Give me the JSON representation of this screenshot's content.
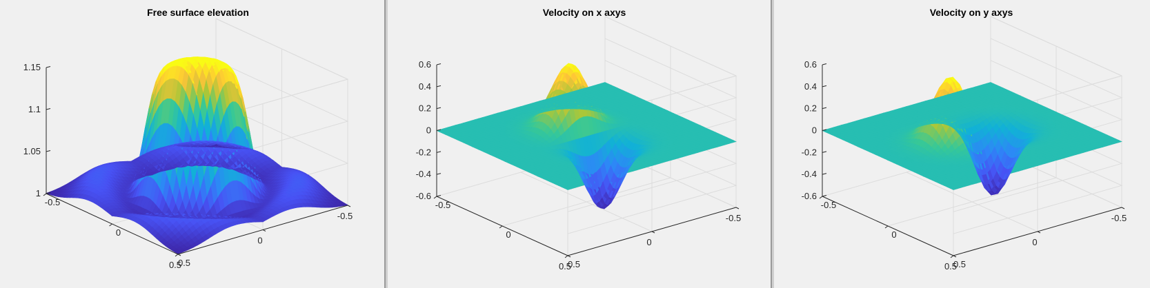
{
  "window": {
    "background": "#f0f0f0"
  },
  "colormap": "parula",
  "chart_data": [
    {
      "type": "surface",
      "title": "Free surface elevation",
      "xlabel": "",
      "ylabel": "",
      "zlabel": "",
      "xlim": [
        -0.5,
        0.5
      ],
      "ylim": [
        -0.5,
        0.5
      ],
      "zlim": [
        1,
        1.15
      ],
      "xticks": [
        "-0.5",
        "0",
        "0.5"
      ],
      "yticks": [
        "-0.5",
        "0",
        "0.5"
      ],
      "zticks": [
        "1",
        "1.05",
        "1.1",
        "1.15"
      ],
      "function": "ring",
      "params": {
        "base": 1.0,
        "amplitude": 0.158,
        "ring_radius": 0.09,
        "ring_width": 0.17,
        "dip": 0.022,
        "dip_width": 0.05,
        "tail_amp": 0.025,
        "tail_sigma": 0.12,
        "tail_radius": 0.47
      }
    },
    {
      "type": "surface",
      "title": "Velocity on x axys",
      "xlabel": "",
      "ylabel": "",
      "zlabel": "",
      "xlim": [
        -0.5,
        0.5
      ],
      "ylim": [
        -0.5,
        0.5
      ],
      "zlim": [
        -0.6,
        0.6
      ],
      "xticks": [
        "-0.5",
        "0",
        "0.5"
      ],
      "yticks": [
        "-0.5",
        "0",
        "0.5"
      ],
      "zticks": [
        "-0.6",
        "-0.4",
        "-0.2",
        "0",
        "0.2",
        "0.4",
        "0.6"
      ],
      "function": "dipole-x",
      "params": {
        "amplitude": 0.61,
        "offset": 0.12,
        "sigma": 0.09,
        "sigma_cross": 0.09
      }
    },
    {
      "type": "surface",
      "title": "Velocity on y axys",
      "xlabel": "",
      "ylabel": "",
      "zlabel": "",
      "xlim": [
        -0.5,
        0.5
      ],
      "ylim": [
        -0.5,
        0.5
      ],
      "zlim": [
        -0.6,
        0.6
      ],
      "xticks": [
        "-0.5",
        "0",
        "0.5"
      ],
      "yticks": [
        "-0.5",
        "0",
        "0.5"
      ],
      "zticks": [
        "-0.6",
        "-0.4",
        "-0.2",
        "0",
        "0.2",
        "0.4",
        "0.6"
      ],
      "function": "dipole-y",
      "params": {
        "amplitude": 0.61,
        "offset": 0.12,
        "sigma": 0.09,
        "sigma_cross": 0.09
      }
    }
  ]
}
